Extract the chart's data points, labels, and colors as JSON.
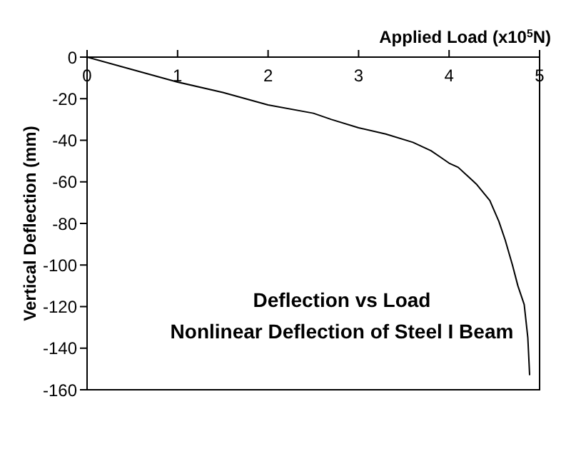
{
  "chart_data": {
    "type": "line",
    "title": "Deflection vs Load",
    "subtitle": "Nonlinear Deflection of Steel I Beam",
    "xlabel": "Applied Load  (x10$^{5}$N)",
    "ylabel": "Vertical Deflection (mm)",
    "x": [
      0,
      0.5,
      1,
      1.5,
      2,
      2.5,
      2.7,
      3,
      3.3,
      3.6,
      3.8,
      3.9,
      4.0,
      4.1,
      4.2,
      4.3,
      4.45,
      4.55,
      4.62,
      4.7,
      4.76,
      4.83,
      4.87,
      4.89
    ],
    "series": [
      {
        "color": "#000000",
        "values": [
          0,
          -6,
          -12,
          -17,
          -23,
          -27,
          -30,
          -34,
          -37,
          -41,
          -45,
          -48,
          -51,
          -53,
          -57,
          -61,
          -69,
          -79,
          -88,
          -100,
          -110,
          -119,
          -135,
          -153
        ]
      }
    ],
    "xlim": [
      0,
      5
    ],
    "xticks": [
      0,
      1,
      2,
      3,
      4,
      5
    ],
    "ylim": [
      -160,
      0
    ],
    "yticks": [
      -160,
      -140,
      -120,
      -100,
      -80,
      -60,
      -40,
      -20,
      0
    ],
    "marker": "none",
    "line_style": "solid"
  }
}
